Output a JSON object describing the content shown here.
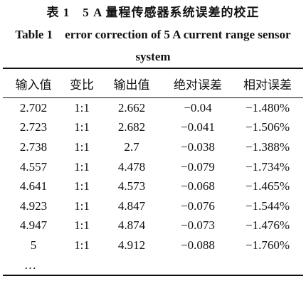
{
  "title": "表 1　5 A 量程传感器系统误差的校正",
  "subtitle": "Table 1　error correction of 5 A current range sensor system",
  "table": {
    "header": [
      "输入值",
      "变比",
      "输出值",
      "绝对误差",
      "相对误差"
    ],
    "rows": [
      [
        "2.702",
        "1:1",
        "2.662",
        "−0.04",
        "−1.480%"
      ],
      [
        "2.723",
        "1:1",
        "2.682",
        "−0.041",
        "−1.506%"
      ],
      [
        "2.738",
        "1:1",
        "2.7",
        "−0.038",
        "−1.388%"
      ],
      [
        "4.557",
        "1:1",
        "4.478",
        "−0.079",
        "−1.734%"
      ],
      [
        "4.641",
        "1:1",
        "4.573",
        "−0.068",
        "−1.465%"
      ],
      [
        "4.923",
        "1:1",
        "4.847",
        "−0.076",
        "−1.544%"
      ],
      [
        "4.947",
        "1:1",
        "4.874",
        "−0.073",
        "−1.476%"
      ],
      [
        "5",
        "1:1",
        "4.912",
        "−0.088",
        "−1.760%"
      ]
    ],
    "continuation": "…"
  }
}
